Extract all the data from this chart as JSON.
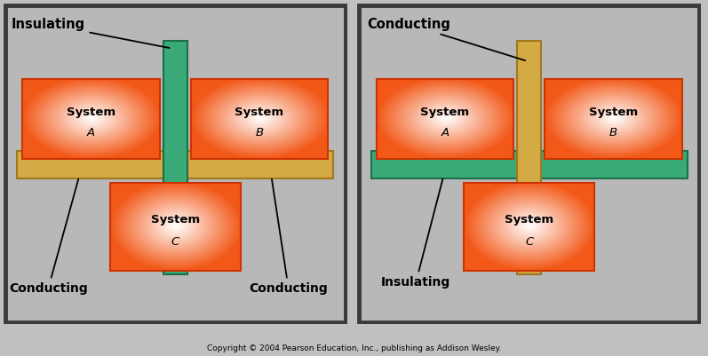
{
  "fig_bg": "#c0c0c0",
  "panel_bg": "#b8b8b8",
  "panel_border": "#3a3a3a",
  "orange_dark": "#e83000",
  "orange_mid": "#ff6600",
  "orange_light": "#ff9966",
  "white_ish": "#ffffff",
  "conducting_yellow": "#d4aa44",
  "conducting_yellow_edge": "#a07820",
  "insulating_green": "#3aaa78",
  "insulating_green_edge": "#1a7048",
  "copyright": "Copyright © 2004 Pearson Education, Inc., publishing as Addison Wesley.",
  "diagram1": {
    "label_top": "Insulating",
    "label_bl": "Conducting",
    "label_br": "Conducting",
    "vbar_color": "#3aaa78",
    "vbar_edge": "#1a7048",
    "hbar_color": "#d4aa44",
    "hbar_edge": "#a07820"
  },
  "diagram2": {
    "label_top": "Conducting",
    "label_bl": "Insulating",
    "vbar_color": "#d4aa44",
    "vbar_edge": "#a07820",
    "hbar_color": "#3aaa78",
    "hbar_edge": "#1a7048"
  }
}
